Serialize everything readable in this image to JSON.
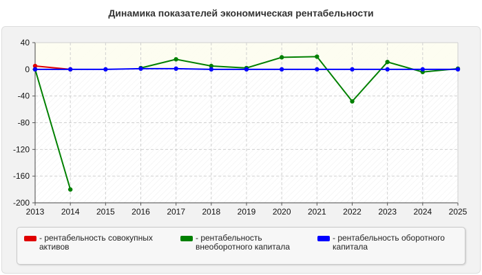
{
  "chart_data": {
    "type": "line",
    "title": "Динамика показателей экономическая рентабельности",
    "x": [
      "2013",
      "2014",
      "2015",
      "2016",
      "2017",
      "2018",
      "2019",
      "2020",
      "2021",
      "2022",
      "2023",
      "2024",
      "2025"
    ],
    "ylim": [
      -200,
      40
    ],
    "yticks": [
      40,
      0,
      -40,
      -80,
      -120,
      -160,
      -200
    ],
    "grid": true,
    "legend_position": "bottom",
    "series": [
      {
        "name": "- рентабельность совокупных активов",
        "color": "#e00000",
        "values": [
          5,
          0,
          null,
          null,
          null,
          null,
          null,
          null,
          null,
          null,
          null,
          null,
          null
        ]
      },
      {
        "name": "- рентабельность внеоборотного капитала",
        "color": "#008000",
        "values": [
          0,
          -180,
          null,
          2,
          15,
          5,
          2,
          18,
          19,
          -48,
          11,
          -4,
          1
        ]
      },
      {
        "name": "- рентабельность оборотного капитала",
        "color": "#0000ff",
        "values": [
          0,
          0,
          0,
          1,
          1,
          0,
          0,
          0,
          0,
          0,
          0,
          0,
          0
        ]
      }
    ]
  }
}
